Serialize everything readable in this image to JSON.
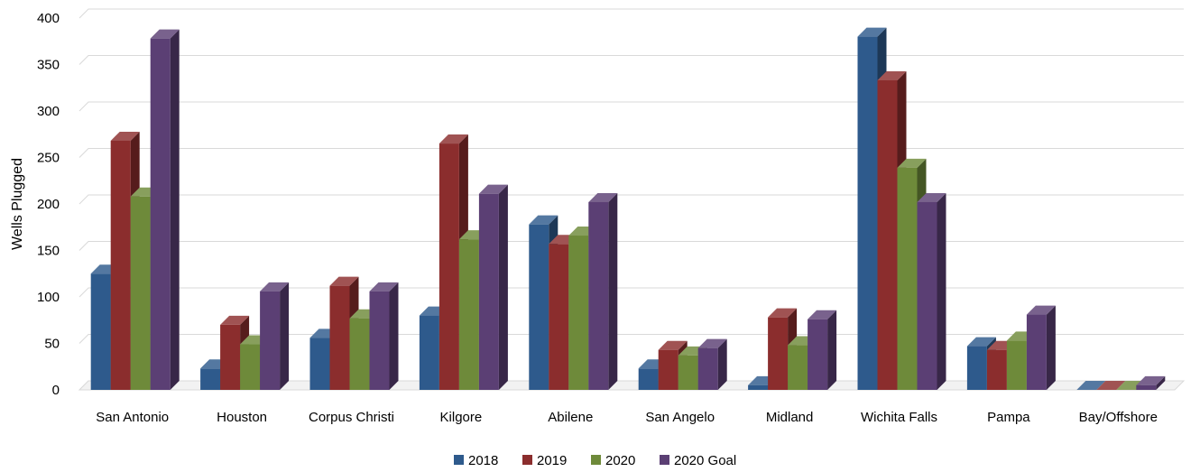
{
  "chart_data": {
    "type": "bar",
    "ylabel": "Wells Plugged",
    "xlabel": "",
    "ylim": [
      0,
      400
    ],
    "yticks": [
      0,
      50,
      100,
      150,
      200,
      250,
      300,
      350,
      400
    ],
    "categories": [
      "San Antonio",
      "Houston",
      "Corpus Christi",
      "Kilgore",
      "Abilene",
      "San Angelo",
      "Midland",
      "Wichita Falls",
      "Pampa",
      "Bay/Offshore"
    ],
    "series": [
      {
        "name": "2018",
        "color": "#2e5a8c",
        "values": [
          125,
          23,
          56,
          80,
          178,
          23,
          5,
          380,
          47,
          0
        ]
      },
      {
        "name": "2019",
        "color": "#8b2d2d",
        "values": [
          268,
          70,
          112,
          265,
          157,
          43,
          78,
          333,
          43,
          0
        ]
      },
      {
        "name": "2020",
        "color": "#6e8a3a",
        "values": [
          208,
          49,
          77,
          162,
          166,
          37,
          48,
          239,
          53,
          0
        ]
      },
      {
        "name": "2020 Goal",
        "color": "#5b3f74",
        "values": [
          378,
          106,
          106,
          211,
          202,
          45,
          76,
          202,
          81,
          5
        ]
      }
    ],
    "grid": true,
    "legend": "bottom",
    "style": "3d-column"
  }
}
